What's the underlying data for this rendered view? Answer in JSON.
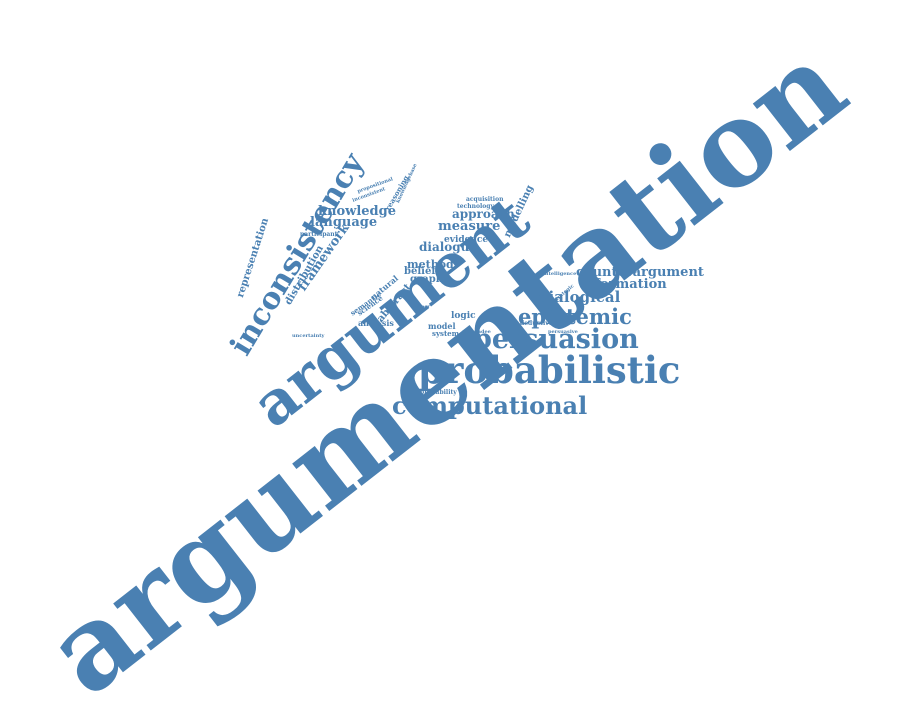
{
  "palette": {
    "word_color": "#4a80b2",
    "background": "#ffffff"
  },
  "words": [
    {
      "text": "argumentation"
    },
    {
      "text": "argument"
    },
    {
      "text": "inconsistency"
    },
    {
      "text": "probabilistic"
    },
    {
      "text": "persuasion"
    },
    {
      "text": "computational"
    },
    {
      "text": "epistemic"
    },
    {
      "text": "dialogical"
    },
    {
      "text": "counterargument"
    },
    {
      "text": "information"
    },
    {
      "text": "knowledge"
    },
    {
      "text": "language"
    },
    {
      "text": "approach"
    },
    {
      "text": "measure"
    },
    {
      "text": "dialogue"
    },
    {
      "text": "framework"
    },
    {
      "text": "representation"
    },
    {
      "text": "distribution"
    },
    {
      "text": "modelling"
    },
    {
      "text": "evidence"
    },
    {
      "text": "method"
    },
    {
      "text": "belief"
    },
    {
      "text": "graph"
    },
    {
      "text": "logic"
    },
    {
      "text": "model"
    },
    {
      "text": "system"
    },
    {
      "text": "analysis"
    },
    {
      "text": "semantic"
    },
    {
      "text": "science"
    },
    {
      "text": "abstract"
    },
    {
      "text": "natural"
    },
    {
      "text": "reasoning"
    },
    {
      "text": "participant"
    },
    {
      "text": "acquisition"
    },
    {
      "text": "technology"
    },
    {
      "text": "intelligence"
    },
    {
      "text": "deductive"
    },
    {
      "text": "persuadee"
    },
    {
      "text": "probability"
    },
    {
      "text": "uncertainty"
    },
    {
      "text": "paper"
    },
    {
      "text": "propositional"
    },
    {
      "text": "inconsistent"
    },
    {
      "text": "knowledgebase"
    },
    {
      "text": "strategic"
    },
    {
      "text": "persuasive"
    }
  ]
}
